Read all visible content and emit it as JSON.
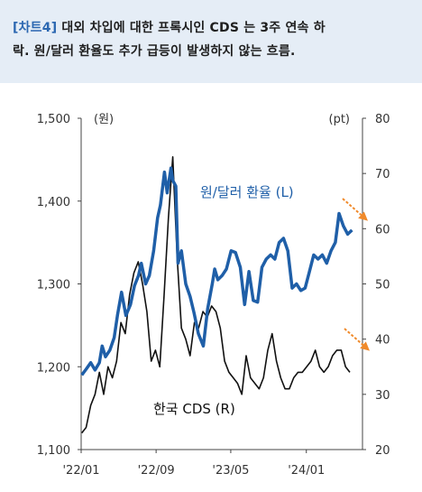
{
  "header": {
    "tag": "[차트4]",
    "line1": " 대외 차입에 대한 프록시인 CDS 는 3주 연속 하",
    "line2": "락. 원/달러 환율도 추가 급등이 발생하지 않는 흐름."
  },
  "chart_data": {
    "type": "line",
    "left_axis_unit": "(원)",
    "right_axis_unit": "(pt)",
    "ylim_left": [
      1100,
      1500
    ],
    "ylim_right": [
      20,
      80
    ],
    "yticks_left": [
      "1,100",
      "1,200",
      "1,300",
      "1,400",
      "1,500"
    ],
    "yticks_right": [
      "20",
      "30",
      "40",
      "50",
      "60",
      "70",
      "80"
    ],
    "xlim": [
      "2022-01-01",
      "2024-07-01"
    ],
    "xticks": [
      {
        "date": "2022-01-01",
        "label": "'22/01"
      },
      {
        "date": "2022-09-01",
        "label": "'22/09"
      },
      {
        "date": "2023-05-01",
        "label": "'23/05"
      },
      {
        "date": "2024-01-01",
        "label": "'24/01"
      }
    ],
    "series": [
      {
        "name": "원/달러 환율 (L)",
        "axis": "left",
        "color": "#1f5fa8",
        "points": [
          [
            "2022-01-03",
            1190
          ],
          [
            "2022-01-17",
            1197
          ],
          [
            "2022-02-01",
            1205
          ],
          [
            "2022-02-15",
            1196
          ],
          [
            "2022-03-01",
            1205
          ],
          [
            "2022-03-10",
            1225
          ],
          [
            "2022-03-21",
            1212
          ],
          [
            "2022-04-04",
            1220
          ],
          [
            "2022-04-18",
            1235
          ],
          [
            "2022-04-29",
            1263
          ],
          [
            "2022-05-12",
            1290
          ],
          [
            "2022-05-26",
            1262
          ],
          [
            "2022-06-10",
            1275
          ],
          [
            "2022-06-23",
            1298
          ],
          [
            "2022-07-06",
            1310
          ],
          [
            "2022-07-15",
            1325
          ],
          [
            "2022-07-29",
            1300
          ],
          [
            "2022-08-10",
            1310
          ],
          [
            "2022-08-24",
            1340
          ],
          [
            "2022-09-06",
            1380
          ],
          [
            "2022-09-15",
            1395
          ],
          [
            "2022-09-28",
            1435
          ],
          [
            "2022-10-07",
            1410
          ],
          [
            "2022-10-19",
            1440
          ],
          [
            "2022-10-25",
            1425
          ],
          [
            "2022-11-04",
            1418
          ],
          [
            "2022-11-11",
            1325
          ],
          [
            "2022-11-22",
            1340
          ],
          [
            "2022-12-06",
            1300
          ],
          [
            "2022-12-20",
            1285
          ],
          [
            "2023-01-02",
            1265
          ],
          [
            "2023-01-16",
            1240
          ],
          [
            "2023-02-01",
            1225
          ],
          [
            "2023-02-15",
            1270
          ],
          [
            "2023-03-02",
            1300
          ],
          [
            "2023-03-10",
            1318
          ],
          [
            "2023-03-20",
            1305
          ],
          [
            "2023-04-03",
            1310
          ],
          [
            "2023-04-17",
            1318
          ],
          [
            "2023-05-02",
            1340
          ],
          [
            "2023-05-16",
            1338
          ],
          [
            "2023-06-01",
            1320
          ],
          [
            "2023-06-15",
            1275
          ],
          [
            "2023-06-29",
            1315
          ],
          [
            "2023-07-13",
            1280
          ],
          [
            "2023-07-27",
            1278
          ],
          [
            "2023-08-10",
            1320
          ],
          [
            "2023-08-24",
            1330
          ],
          [
            "2023-09-07",
            1335
          ],
          [
            "2023-09-21",
            1330
          ],
          [
            "2023-10-05",
            1350
          ],
          [
            "2023-10-19",
            1355
          ],
          [
            "2023-11-02",
            1340
          ],
          [
            "2023-11-16",
            1295
          ],
          [
            "2023-11-30",
            1300
          ],
          [
            "2023-12-14",
            1292
          ],
          [
            "2023-12-28",
            1295
          ],
          [
            "2024-01-11",
            1315
          ],
          [
            "2024-01-25",
            1335
          ],
          [
            "2024-02-08",
            1330
          ],
          [
            "2024-02-22",
            1335
          ],
          [
            "2024-03-07",
            1325
          ],
          [
            "2024-03-21",
            1340
          ],
          [
            "2024-04-04",
            1350
          ],
          [
            "2024-04-16",
            1385
          ],
          [
            "2024-04-30",
            1370
          ],
          [
            "2024-05-14",
            1360
          ],
          [
            "2024-05-28",
            1365
          ]
        ]
      },
      {
        "name": "한국 CDS (R)",
        "axis": "right",
        "color": "#111111",
        "points": [
          [
            "2022-01-03",
            23
          ],
          [
            "2022-01-17",
            24
          ],
          [
            "2022-02-01",
            28
          ],
          [
            "2022-02-15",
            30
          ],
          [
            "2022-03-01",
            34
          ],
          [
            "2022-03-15",
            30
          ],
          [
            "2022-03-29",
            35
          ],
          [
            "2022-04-12",
            33
          ],
          [
            "2022-04-26",
            36
          ],
          [
            "2022-05-10",
            43
          ],
          [
            "2022-05-24",
            41
          ],
          [
            "2022-06-07",
            48
          ],
          [
            "2022-06-21",
            52
          ],
          [
            "2022-07-05",
            54
          ],
          [
            "2022-07-19",
            50
          ],
          [
            "2022-08-02",
            45
          ],
          [
            "2022-08-16",
            36
          ],
          [
            "2022-08-30",
            38
          ],
          [
            "2022-09-13",
            35
          ],
          [
            "2022-09-27",
            48
          ],
          [
            "2022-10-11",
            62
          ],
          [
            "2022-10-25",
            73
          ],
          [
            "2022-11-08",
            55
          ],
          [
            "2022-11-22",
            42
          ],
          [
            "2022-12-06",
            40
          ],
          [
            "2022-12-20",
            37
          ],
          [
            "2023-01-03",
            43
          ],
          [
            "2023-01-17",
            42
          ],
          [
            "2023-01-31",
            45
          ],
          [
            "2023-02-14",
            44
          ],
          [
            "2023-02-28",
            46
          ],
          [
            "2023-03-14",
            45
          ],
          [
            "2023-03-28",
            42
          ],
          [
            "2023-04-11",
            36
          ],
          [
            "2023-04-25",
            34
          ],
          [
            "2023-05-09",
            33
          ],
          [
            "2023-05-23",
            32
          ],
          [
            "2023-06-06",
            30
          ],
          [
            "2023-06-20",
            37
          ],
          [
            "2023-07-04",
            33
          ],
          [
            "2023-07-18",
            32
          ],
          [
            "2023-08-01",
            31
          ],
          [
            "2023-08-15",
            33
          ],
          [
            "2023-08-29",
            38
          ],
          [
            "2023-09-12",
            41
          ],
          [
            "2023-09-26",
            36
          ],
          [
            "2023-10-10",
            33
          ],
          [
            "2023-10-24",
            31
          ],
          [
            "2023-11-07",
            31
          ],
          [
            "2023-11-21",
            33
          ],
          [
            "2023-12-05",
            34
          ],
          [
            "2023-12-19",
            34
          ],
          [
            "2024-01-02",
            35
          ],
          [
            "2024-01-16",
            36
          ],
          [
            "2024-01-30",
            38
          ],
          [
            "2024-02-13",
            35
          ],
          [
            "2024-02-27",
            34
          ],
          [
            "2024-03-12",
            35
          ],
          [
            "2024-03-26",
            37
          ],
          [
            "2024-04-09",
            38
          ],
          [
            "2024-04-23",
            38
          ],
          [
            "2024-05-07",
            35
          ],
          [
            "2024-05-21",
            34
          ]
        ]
      }
    ],
    "annotations": [
      "원/달러 환율 (L)",
      "한국 CDS (R)"
    ],
    "arrow_color": "#f08a2b"
  }
}
